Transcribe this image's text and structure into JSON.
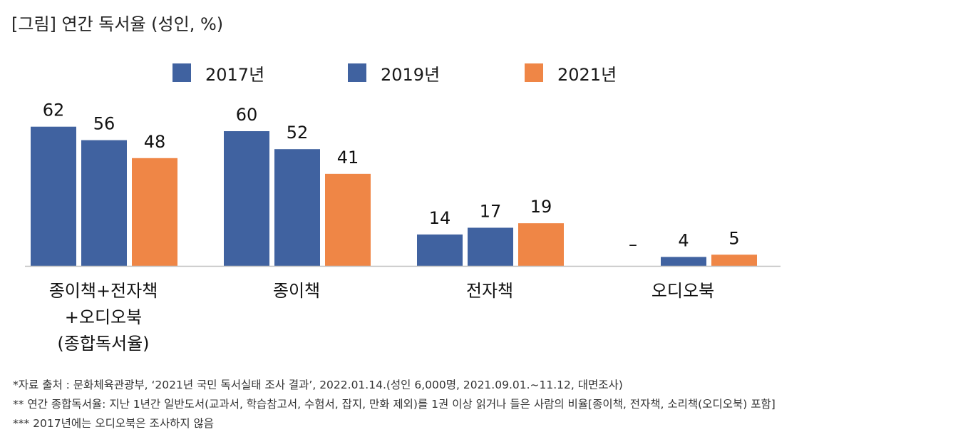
{
  "title": "[그림] 연간 독서율 (성인, %)",
  "chart_data": {
    "type": "bar",
    "title": "[그림] 연간 독서율 (성인, %)",
    "categories": [
      [
        "종이책+전자책",
        "+오디오북",
        "(종합독서율)"
      ],
      [
        "종이책"
      ],
      [
        "전자책"
      ],
      [
        "오디오북"
      ]
    ],
    "series": [
      {
        "name": "2017년",
        "color": "#4062a0",
        "values": [
          62,
          60,
          14,
          null
        ],
        "labels": [
          "62",
          "60",
          "14",
          "–"
        ]
      },
      {
        "name": "2019년",
        "color": "#4062a0",
        "values": [
          56,
          52,
          17,
          4
        ],
        "labels": [
          "56",
          "52",
          "17",
          "4"
        ]
      },
      {
        "name": "2021년",
        "color": "#ef8646",
        "values": [
          48,
          41,
          19,
          5
        ],
        "labels": [
          "48",
          "41",
          "19",
          "5"
        ]
      }
    ],
    "xlabel": "",
    "ylabel": "",
    "ylim": [
      0,
      62
    ],
    "grid": false,
    "legend_position": "top-center"
  },
  "notes": [
    "*자료 출처 : 문화체육관광부, ‘2021년 국민 독서실태 조사 결과’, 2022.01.14.(성인 6,000명, 2021.09.01.~11.12, 대면조사)",
    "** 연간 종합독서율: 지난 1년간 일반도서(교과서, 학습참고서, 수험서, 잡지, 만화 제외)를 1권 이상 읽거나 들은 사람의 비율[종이책, 전자책, 소리책(오디오북) 포함]",
    "*** 2017년에는 오디오북은 조사하지 않음"
  ]
}
